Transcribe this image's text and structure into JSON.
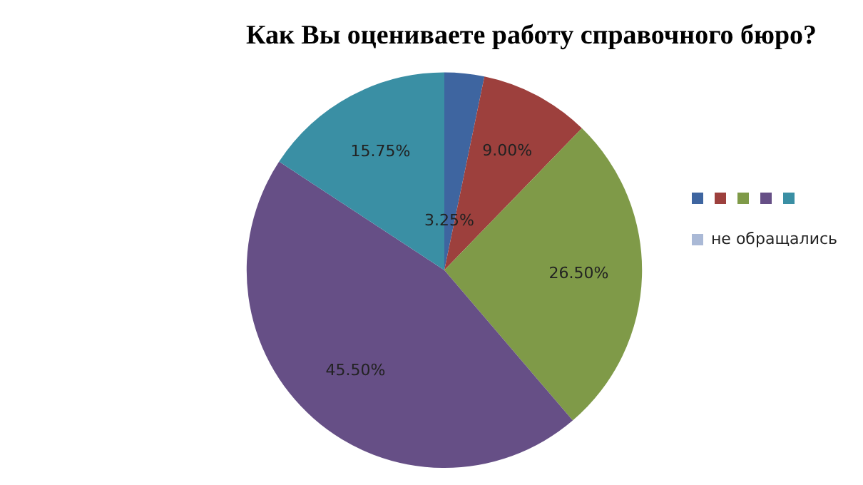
{
  "chart_data": {
    "type": "pie",
    "title": "Как Вы оцениваете работу справочного бюро?",
    "categories": [
      null,
      null,
      null,
      null,
      null,
      "не обращались"
    ],
    "values": [
      3.25,
      9.0,
      26.5,
      45.5,
      15.75,
      0
    ],
    "value_labels": [
      "3.25%",
      "9.00%",
      "26.50%",
      "45.50%",
      "15.75%",
      null
    ],
    "colors": [
      "#3e65a0",
      "#9d403d",
      "#7f9a48",
      "#664f86",
      "#3a8fa4",
      "#aab9d6"
    ],
    "legend": "right"
  }
}
